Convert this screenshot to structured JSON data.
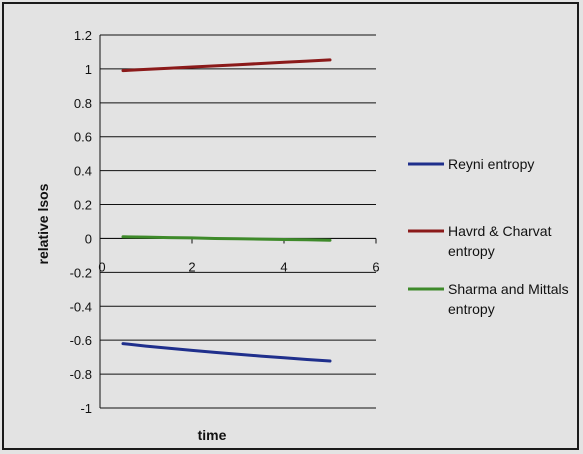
{
  "chart_data": {
    "type": "line",
    "title": "",
    "xlabel": "time",
    "ylabel": "relative lsos",
    "xlim": [
      0,
      6
    ],
    "ylim": [
      -1,
      1.2
    ],
    "xticks": [
      0,
      2,
      4,
      6
    ],
    "yticks": [
      1.2,
      1,
      0.8,
      0.6,
      0.4,
      0.2,
      0,
      -0.2,
      -0.4,
      -0.6,
      -0.8,
      -1
    ],
    "ytick_labels": [
      "1.2",
      "1",
      "0.8",
      "0.6",
      "0.4",
      "0.2",
      "0",
      "-0.2",
      "-0.4",
      "-0.6",
      "-0.8",
      "-1"
    ],
    "xtick_labels": [
      "0",
      "2",
      "4",
      "6"
    ],
    "grid": "horizontal",
    "legend_position": "right",
    "series": [
      {
        "name": "Reyni entropy",
        "color": "#1f2f8c",
        "x": [
          0.5,
          1,
          1.5,
          2,
          2.5,
          3,
          3.5,
          4,
          4.5,
          5
        ],
        "y": [
          -0.62,
          -0.635,
          -0.648,
          -0.66,
          -0.672,
          -0.683,
          -0.694,
          -0.704,
          -0.714,
          -0.723
        ]
      },
      {
        "name": "Havrd & Charvat entropy",
        "color": "#8b1a1a",
        "x": [
          0.5,
          1,
          1.5,
          2,
          2.5,
          3,
          3.5,
          4,
          4.5,
          5
        ],
        "y": [
          0.99,
          0.997,
          1.004,
          1.011,
          1.018,
          1.025,
          1.032,
          1.039,
          1.046,
          1.053
        ]
      },
      {
        "name": "Sharma and Mittals entropy",
        "color": "#3e8a2a",
        "x": [
          0.5,
          1,
          1.5,
          2,
          2.5,
          3,
          3.5,
          4,
          4.5,
          5
        ],
        "y": [
          0.01,
          0.008,
          0.005,
          0.003,
          0.0,
          -0.002,
          -0.004,
          -0.006,
          -0.008,
          -0.01
        ]
      }
    ]
  },
  "legend": {
    "items": [
      {
        "line1": "Reyni entropy",
        "line2": ""
      },
      {
        "line1": "Havrd & Charvat",
        "line2": "entropy"
      },
      {
        "line1": "Sharma and Mittals",
        "line2": "entropy"
      }
    ]
  }
}
